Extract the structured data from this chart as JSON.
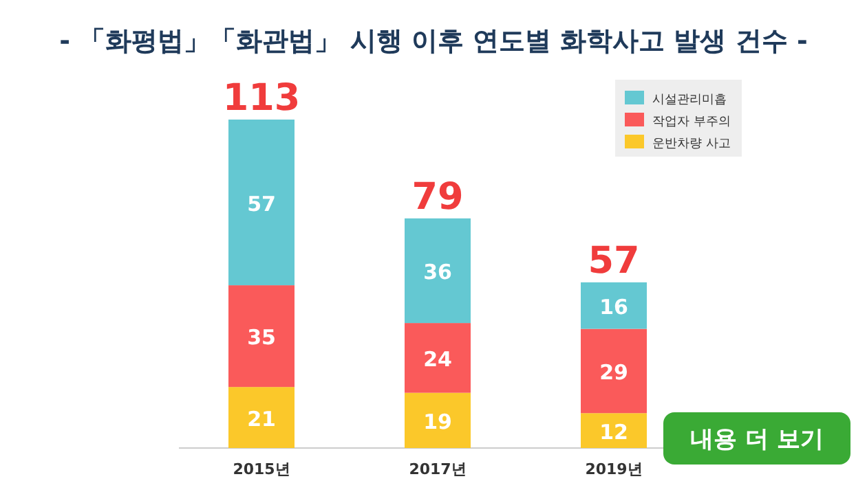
{
  "chart_data": {
    "type": "bar",
    "title": "- 「화평법」「화관법」 시행 이후  연도별 화학사고 발생 건수 -",
    "categories": [
      "2015년",
      "2017년",
      "2019년"
    ],
    "stacked": true,
    "series": [
      {
        "name": "운반차량 사고",
        "color": "#fbc82a",
        "values": [
          21,
          19,
          12
        ]
      },
      {
        "name": "작업자 부주의",
        "color": "#fa5a5a",
        "values": [
          35,
          24,
          29
        ]
      },
      {
        "name": "시설관리미흡",
        "color": "#64c8d2",
        "values": [
          57,
          36,
          16
        ]
      }
    ],
    "data_labels": true,
    "totals": [
      "113",
      "79",
      "57"
    ],
    "legend": "top right",
    "annotations": [
      "내용 더 보기"
    ]
  }
}
